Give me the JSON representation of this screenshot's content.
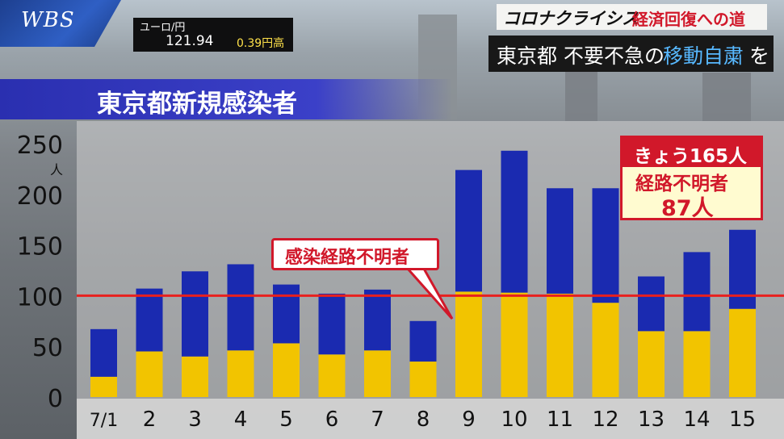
{
  "header": {
    "logo_text": "WBS",
    "fx": {
      "pair": "ユーロ/円",
      "rate": "121.94",
      "change": "0.39円高"
    },
    "corona_title": "コロナクライシス",
    "corona_sub": "経済回復への道",
    "subtitle_a": "東京都 不要不急の",
    "subtitle_b": "移動自粛",
    "subtitle_c": "を"
  },
  "today_box": {
    "line1": "きょう165人",
    "line2": "経路不明者",
    "line3": "87人"
  },
  "callout_label": "感染経路不明者",
  "colors": {
    "unknown": "#f2c400",
    "known": "#1a2ab0",
    "reference": "#e8201e"
  },
  "chart_data": {
    "type": "bar",
    "title": "東京都新規感染者",
    "yunit": "人",
    "categories": [
      "7/1",
      "2",
      "3",
      "4",
      "5",
      "6",
      "7",
      "8",
      "9",
      "10",
      "11",
      "12",
      "13",
      "14",
      "15"
    ],
    "series": [
      {
        "name": "感染経路不明者",
        "values": [
          20,
          45,
          40,
          46,
          53,
          42,
          46,
          35,
          104,
          103,
          102,
          93,
          65,
          65,
          87
        ]
      },
      {
        "values": [
          47,
          62,
          84,
          85,
          58,
          60,
          60,
          40,
          120,
          140,
          104,
          113,
          54,
          78,
          78
        ]
      }
    ],
    "stacked": true,
    "reference_line": 100,
    "yticks": [
      0,
      50,
      100,
      150,
      200,
      250
    ],
    "ylim": [
      0,
      250
    ]
  }
}
